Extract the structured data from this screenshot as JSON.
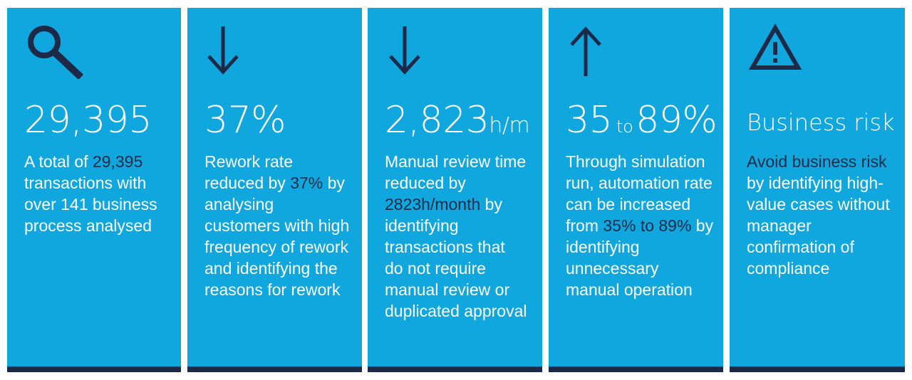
{
  "cards": [
    {
      "icon": "magnifier-icon",
      "big": "29,395",
      "desc_pre": "A total of ",
      "desc_hl": "29,395",
      "desc_post": " transactions with over 141 business process analysed"
    },
    {
      "icon": "arrow-down-icon",
      "big": "37%",
      "desc_pre": "Rework rate reduced by ",
      "desc_hl": "37%",
      "desc_post": " by analysing customers with high frequency of rework and identifying the reasons for rework"
    },
    {
      "icon": "arrow-down-icon",
      "big": "2,823",
      "big_unit": "h/m",
      "desc_pre": "Manual review time reduced by ",
      "desc_hl": "2823h/month",
      "desc_post": " by identifying transactions that do not require manual review or duplicated approval"
    },
    {
      "icon": "arrow-up-icon",
      "big_a": "35",
      "big_to": "to",
      "big_b": "89%",
      "desc_pre": "Through simulation run, automation rate can be increased from ",
      "desc_hl": "35% to 89%",
      "desc_post": " by identifying unnecessary manual operation"
    },
    {
      "icon": "warning-icon",
      "big": "Business risk",
      "desc_hl": "Avoid business risk",
      "desc_post": " by identifying high-value cases without manager confirmation of compliance"
    }
  ],
  "colors": {
    "card_bg": "#10a6de",
    "accent_dark": "#1d2a47",
    "text": "#ffffff"
  }
}
